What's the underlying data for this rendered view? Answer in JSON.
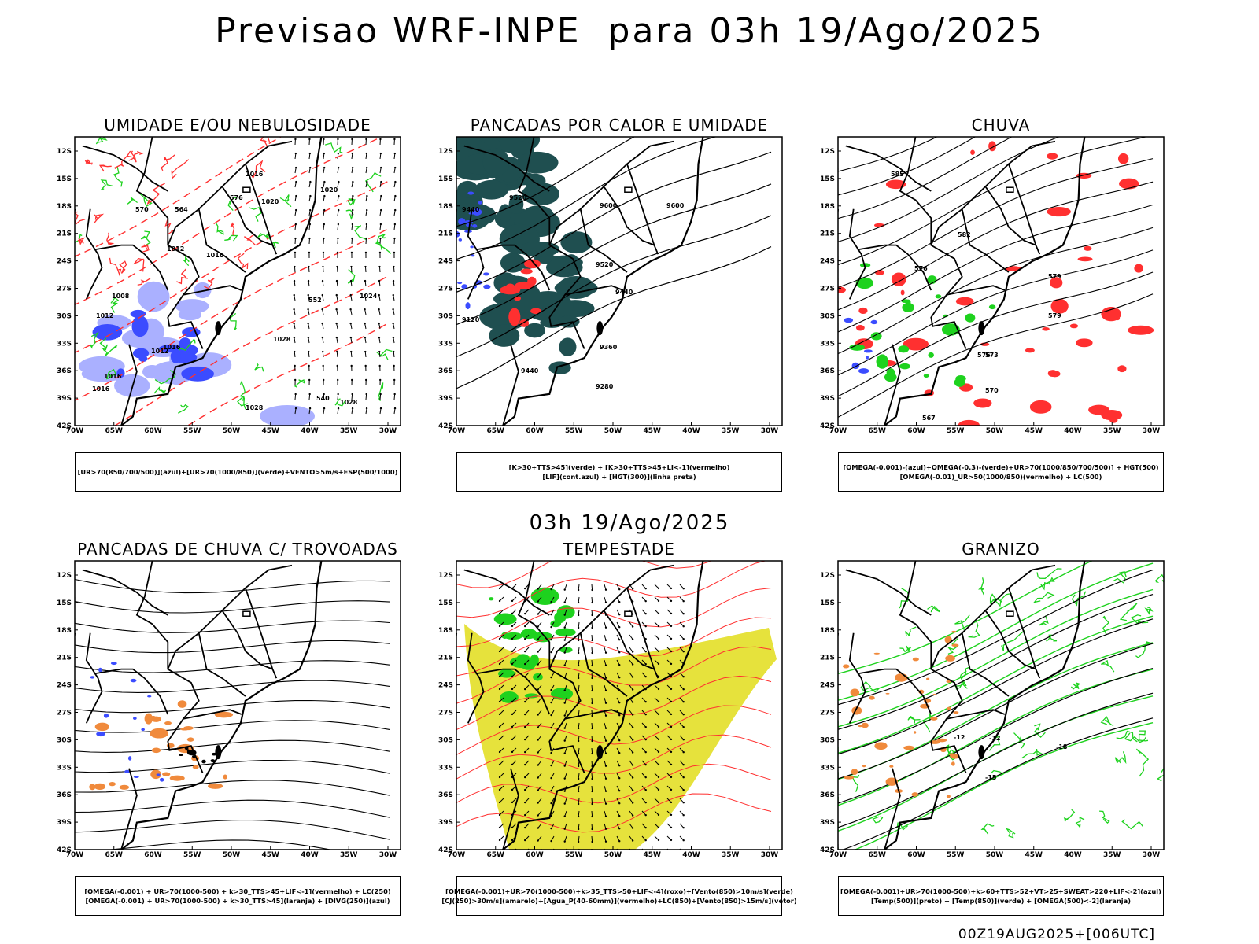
{
  "page": {
    "title": "Previsao WRF-INPE  para 03h 19/Ago/2025",
    "subtitle": "03h 19/Ago/2025",
    "footer": "00Z19AUG2025+[006UTC]"
  },
  "axes": {
    "lat_labels": [
      "12S",
      "15S",
      "18S",
      "21S",
      "24S",
      "27S",
      "30S",
      "33S",
      "36S",
      "39S",
      "42S"
    ],
    "lon_labels": [
      "70W",
      "65W",
      "60W",
      "55W",
      "50W",
      "45W",
      "40W",
      "35W",
      "30W"
    ]
  },
  "panels": [
    {
      "id": "umidade",
      "title": "UMIDADE E/OU NEBULOSIDADE",
      "caption": [
        "[UR>70(850/700/500)](azul)+[UR>70(1000/850)](verde)+VENTO>5m/s+ESP(500/1000)"
      ],
      "contour_labels": [
        "1016",
        "1020",
        "1020",
        "1012",
        "1016",
        "1008",
        "1012",
        "1016",
        "1024",
        "1028",
        "1028",
        "1028",
        "1016",
        "1016",
        "1012",
        "552",
        "540",
        "576",
        "570",
        "564"
      ]
    },
    {
      "id": "pancadas-calor",
      "title": "PANCADAS POR CALOR E UMIDADE",
      "caption": [
        "[K>30+TTS>45](verde) + [K>30+TTS>45+LI<-1](vermelho)",
        "[LIF](cont.azul) + [HGT(300)](linha preta)"
      ],
      "contour_labels": [
        "9600",
        "9520",
        "9440",
        "9360",
        "9280",
        "9440",
        "9120",
        "9600",
        "9520",
        "9440"
      ]
    },
    {
      "id": "chuva",
      "title": "CHUVA",
      "caption": [
        "[OMEGA(-0.001)-(azul)+OMEGA(-0.3)-(verde)+UR>70(1000/850/700/500)] + HGT(500)",
        "[OMEGA(-0.01)_UR>50(1000/850)(vermelho) + LC(500)"
      ],
      "contour_labels": [
        "585",
        "582",
        "579",
        "576",
        "573",
        "570",
        "567",
        "576",
        "579"
      ]
    },
    {
      "id": "trovoadas",
      "title": "PANCADAS DE CHUVA C/ TROVOADAS",
      "caption": [
        "[OMEGA(-0.001) + UR>70(1000-500) + k>30_TTS>45+LIF<-1](vermelho) + LC(250)",
        "[OMEGA(-0.001) + UR>70(1000-500) + k>30_TTS>45](laranja) + [DIVG(250)](azul)"
      ],
      "contour_labels": []
    },
    {
      "id": "tempestade",
      "title": "TEMPESTADE",
      "caption": [
        "[OMEGA(-0.001)+UR>70(1000-500)+k>35_TTS>50+LIF<-4](roxo)+[Vento(850)>10m/s](verde)",
        "[CJ(250)>30m/s](amarelo)+[Agua_P(40-60mm)](vermelho)+LC(850)+[Vento(850)>15m/s](vetor)"
      ],
      "contour_labels": []
    },
    {
      "id": "granizo",
      "title": "GRANIZO",
      "caption": [
        "[OMEGA(-0.001)+UR>70(1000-500)+k>60+TTS>52+VT>25+SWEAT>220+LIF<-2](azul)",
        "[Temp(500)](preto) + [Temp(850)](verde) + [OMEGA(500)<-2](laranja)"
      ],
      "contour_labels": [
        "-12",
        "-12",
        "-15",
        "-18"
      ]
    }
  ],
  "colors": {
    "blue": "#3b4cff",
    "light_blue": "#aab0ff",
    "green": "#1ed21e",
    "red": "#ff3030",
    "dark_teal": "#1f4f50",
    "orange": "#f08a3c",
    "yellow": "#e6e23c",
    "black": "#000000"
  }
}
